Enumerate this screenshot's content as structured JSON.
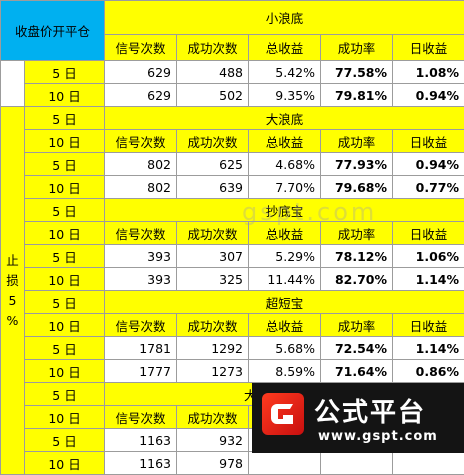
{
  "corner_header": "收盘价开平仓",
  "side_label": [
    "止",
    "损",
    "5",
    "%"
  ],
  "columns": [
    "信号次数",
    "成功次数",
    "总收益",
    "成功率",
    "日收益"
  ],
  "sections": [
    {
      "title": "小浪底",
      "rows": [
        {
          "period": "5 日",
          "signals": "629",
          "success": "488",
          "total": "5.42%",
          "rate": "77.58%",
          "daily": "1.08%"
        },
        {
          "period": "10 日",
          "signals": "629",
          "success": "502",
          "total": "9.35%",
          "rate": "79.81%",
          "daily": "0.94%"
        }
      ]
    },
    {
      "title": "大浪底",
      "rows": [
        {
          "period": "5 日",
          "signals": "802",
          "success": "625",
          "total": "4.68%",
          "rate": "77.93%",
          "daily": "0.94%"
        },
        {
          "period": "10 日",
          "signals": "802",
          "success": "639",
          "total": "7.70%",
          "rate": "79.68%",
          "daily": "0.77%"
        }
      ]
    },
    {
      "title": "抄底宝",
      "rows": [
        {
          "period": "5 日",
          "signals": "393",
          "success": "307",
          "total": "5.29%",
          "rate": "78.12%",
          "daily": "1.06%"
        },
        {
          "period": "10 日",
          "signals": "393",
          "success": "325",
          "total": "11.44%",
          "rate": "82.70%",
          "daily": "1.14%"
        }
      ]
    },
    {
      "title": "超短宝",
      "rows": [
        {
          "period": "5 日",
          "signals": "1781",
          "success": "1292",
          "total": "5.68%",
          "rate": "72.54%",
          "daily": "1.14%"
        },
        {
          "period": "10 日",
          "signals": "1777",
          "success": "1273",
          "total": "8.59%",
          "rate": "71.64%",
          "daily": "0.86%"
        }
      ]
    },
    {
      "title": "大魔王共振≥3",
      "rows": [
        {
          "period": "5 日",
          "signals": "1163",
          "success": "932",
          "total": "",
          "rate": "",
          "daily": ""
        },
        {
          "period": "10 日",
          "signals": "1163",
          "success": "978",
          "total": "",
          "rate": "",
          "daily": ""
        }
      ]
    }
  ],
  "row_labels": {
    "five": "5 日",
    "ten": "10 日"
  },
  "watermark": "gspt.com",
  "logo": {
    "name": "公式平台",
    "url": "www.gspt.com"
  },
  "colors": {
    "header_yellow": "#ffff00",
    "corner_cyan": "#00b0f0",
    "rate_red": "#e01f1f"
  }
}
